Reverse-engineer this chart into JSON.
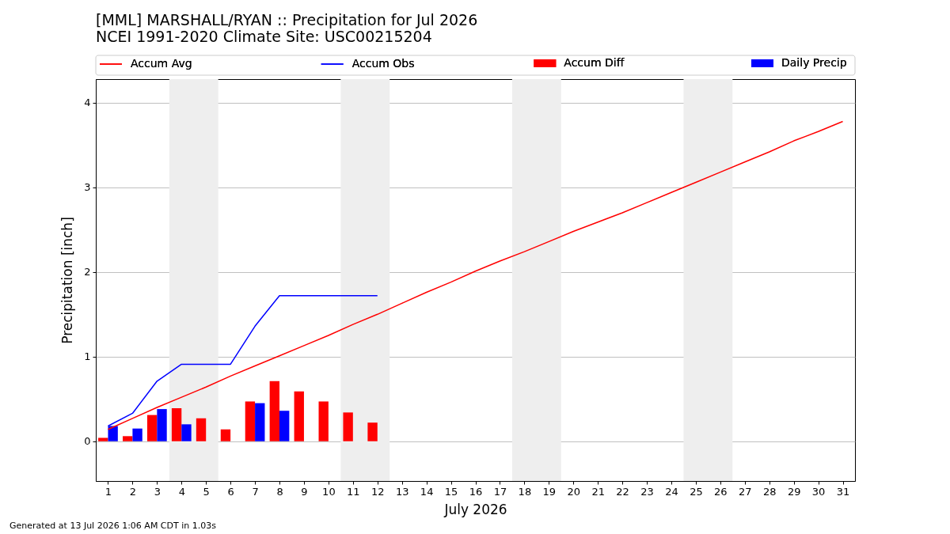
{
  "chart_data": {
    "type": "bar",
    "title": "[MML] MARSHALL/RYAN :: Precipitation for Jul 2026",
    "subtitle": "NCEI 1991-2020 Climate Site: USC00215204",
    "xlabel": "July 2026",
    "ylabel": "Precipitation [inch]",
    "x": [
      1,
      2,
      3,
      4,
      5,
      6,
      7,
      8,
      9,
      10,
      11,
      12,
      13,
      14,
      15,
      16,
      17,
      18,
      19,
      20,
      21,
      22,
      23,
      24,
      25,
      26,
      27,
      28,
      29,
      30,
      31
    ],
    "series": [
      {
        "name": "Accum Avg",
        "type": "line",
        "color": "#ff0000",
        "values": [
          0.14,
          0.27,
          0.4,
          0.52,
          0.64,
          0.77,
          0.89,
          1.01,
          1.13,
          1.25,
          1.38,
          1.5,
          1.63,
          1.76,
          1.88,
          2.01,
          2.13,
          2.24,
          2.36,
          2.48,
          2.59,
          2.7,
          2.82,
          2.94,
          3.06,
          3.18,
          3.3,
          3.42,
          3.55,
          3.66,
          3.78
        ]
      },
      {
        "name": "Accum Obs",
        "type": "line",
        "color": "#0000ff",
        "values": [
          0.18,
          0.33,
          0.71,
          0.91,
          0.91,
          0.91,
          1.36,
          1.72,
          1.72,
          1.72,
          1.72,
          1.72,
          null,
          null,
          null,
          null,
          null,
          null,
          null,
          null,
          null,
          null,
          null,
          null,
          null,
          null,
          null,
          null,
          null,
          null,
          null
        ]
      },
      {
        "name": "Accum Diff",
        "color": "#ff0000",
        "values": [
          0.04,
          0.06,
          0.31,
          0.39,
          0.27,
          0.14,
          0.47,
          0.71,
          0.59,
          0.47,
          0.34,
          0.22,
          null,
          null,
          null,
          null,
          null,
          null,
          null,
          null,
          null,
          null,
          null,
          null,
          null,
          null,
          null,
          null,
          null,
          null,
          null
        ]
      },
      {
        "name": "Daily Precip",
        "color": "#0000ff",
        "values": [
          0.18,
          0.15,
          0.38,
          0.2,
          0,
          0,
          0.45,
          0.36,
          0,
          0,
          0,
          0,
          null,
          null,
          null,
          null,
          null,
          null,
          null,
          null,
          null,
          null,
          null,
          null,
          null,
          null,
          null,
          null,
          null,
          null,
          null
        ]
      }
    ],
    "xlim": [
      0.5,
      31.5
    ],
    "xticks": [
      1,
      2,
      3,
      4,
      5,
      6,
      7,
      8,
      9,
      10,
      11,
      12,
      13,
      14,
      15,
      16,
      17,
      18,
      19,
      20,
      21,
      22,
      23,
      24,
      25,
      26,
      27,
      28,
      29,
      30,
      31
    ],
    "ylim": [
      -0.47,
      4.28
    ],
    "yticks": [
      0,
      1,
      2,
      3,
      4
    ],
    "bands": [
      {
        "axis": "x",
        "from": 3.5,
        "to": 5.5,
        "color": "#eeeeee"
      },
      {
        "axis": "x",
        "from": 10.5,
        "to": 12.5,
        "color": "#eeeeee"
      },
      {
        "axis": "x",
        "from": 17.5,
        "to": 19.5,
        "color": "#eeeeee"
      },
      {
        "axis": "x",
        "from": 24.5,
        "to": 26.5,
        "color": "#eeeeee"
      }
    ],
    "grid": "y",
    "legend": "top",
    "annotations": [
      "Generated at 13 Jul 2026 1:06 AM CDT in 1.03s"
    ]
  }
}
